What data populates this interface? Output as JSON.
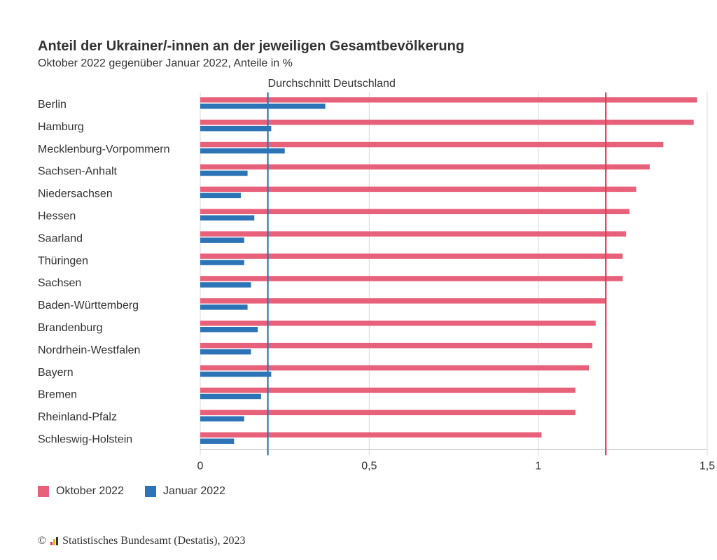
{
  "header": {
    "title": "Anteil der Ukrainer/-innen an der jeweiligen Gesamtbevölkerung",
    "subtitle": "Oktober 2022 gegenüber Januar 2022, Anteile in %"
  },
  "legend": {
    "items": [
      {
        "label": "Oktober 2022",
        "color": "#e8617a"
      },
      {
        "label": "Januar 2022",
        "color": "#2c74b5"
      }
    ]
  },
  "footer": {
    "copyright_symbol": "©",
    "text": "Statistisches Bundesamt (Destatis), 2023"
  },
  "chart_data": {
    "type": "bar",
    "orientation": "horizontal",
    "title": "Anteil der Ukrainer/-innen an der jeweiligen Gesamtbevölkerung",
    "subtitle": "Oktober 2022 gegenüber Januar 2022, Anteile in %",
    "categories": [
      "Berlin",
      "Hamburg",
      "Mecklenburg-Vorpommern",
      "Sachsen-Anhalt",
      "Niedersachsen",
      "Hessen",
      "Saarland",
      "Thüringen",
      "Sachsen",
      "Baden-Württemberg",
      "Brandenburg",
      "Nordrhein-Westfalen",
      "Bayern",
      "Bremen",
      "Rheinland-Pfalz",
      "Schleswig-Holstein"
    ],
    "series": [
      {
        "name": "Oktober 2022",
        "color": "#e8617a",
        "values": [
          1.47,
          1.46,
          1.37,
          1.33,
          1.29,
          1.27,
          1.26,
          1.25,
          1.25,
          1.2,
          1.17,
          1.16,
          1.15,
          1.11,
          1.11,
          1.01
        ]
      },
      {
        "name": "Januar 2022",
        "color": "#2c74b5",
        "values": [
          0.37,
          0.21,
          0.25,
          0.14,
          0.12,
          0.16,
          0.13,
          0.13,
          0.15,
          0.14,
          0.17,
          0.15,
          0.21,
          0.18,
          0.13,
          0.1
        ]
      }
    ],
    "reference_lines": [
      {
        "series": "Januar 2022",
        "value": 0.2,
        "color": "#2c74b5",
        "label": "Durchschnitt Deutschland"
      },
      {
        "series": "Oktober 2022",
        "value": 1.2,
        "color": "#e8374f",
        "label": ""
      }
    ],
    "xlim": [
      0,
      1.5
    ],
    "xticks": [
      0,
      0.5,
      1,
      1.5
    ],
    "xtick_labels": [
      "0",
      "0,5",
      "1",
      "1,5"
    ],
    "grid": "vertical",
    "legend_position": "bottom-left"
  }
}
